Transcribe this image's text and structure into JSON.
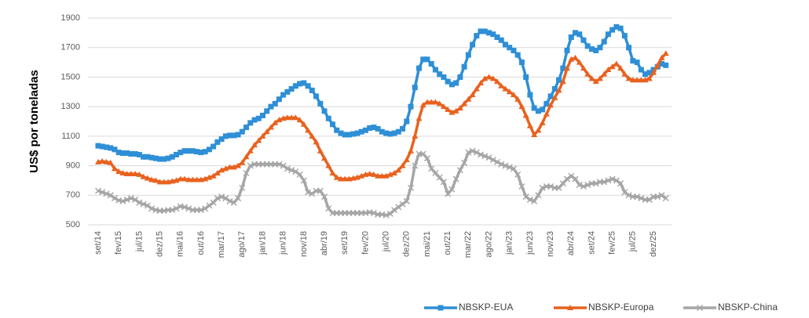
{
  "chart_data": {
    "type": "line",
    "y_label": "US$ por toneladas",
    "ylim": [
      500,
      1900
    ],
    "yticks": [
      500,
      700,
      900,
      1100,
      1300,
      1500,
      1700,
      1900
    ],
    "grid": true,
    "legend": "bottom",
    "categories": [
      "set/14",
      null,
      null,
      null,
      null,
      "fev/15",
      null,
      null,
      null,
      null,
      "jul/15",
      null,
      null,
      null,
      null,
      "dez/15",
      null,
      null,
      null,
      null,
      "mai/16",
      null,
      null,
      null,
      null,
      "out/16",
      null,
      null,
      null,
      null,
      "mar/17",
      null,
      null,
      null,
      null,
      "ago/17",
      null,
      null,
      null,
      null,
      "jan/18",
      null,
      null,
      null,
      null,
      "jun/18",
      null,
      null,
      null,
      null,
      "nov/18",
      null,
      null,
      null,
      null,
      "abr/19",
      null,
      null,
      null,
      null,
      "set/19",
      null,
      null,
      null,
      null,
      "fev/20",
      null,
      null,
      null,
      null,
      "jul/20",
      null,
      null,
      null,
      null,
      "dez/20",
      null,
      null,
      null,
      null,
      "mai/21",
      null,
      null,
      null,
      null,
      "out/21",
      null,
      null,
      null,
      null,
      "mar/22",
      null,
      null,
      null,
      null,
      "ago/22",
      null,
      null,
      null,
      null,
      "jan/23",
      null,
      null,
      null,
      null,
      "jun/23",
      null,
      null,
      null,
      null,
      "nov/23",
      null,
      null,
      null,
      null,
      "abr/24",
      null,
      null,
      null,
      null,
      "set/24",
      null,
      null,
      null,
      null,
      "fev/25",
      null,
      null,
      null,
      null,
      "jul/25",
      null,
      null,
      null,
      null,
      "dez/25",
      null,
      null,
      null
    ],
    "series": [
      {
        "name": "NBSKP-EUA",
        "color": "#2e8fd6",
        "marker": "square",
        "values": [
          1035,
          1030,
          1025,
          1020,
          1010,
          990,
          985,
          985,
          980,
          980,
          975,
          960,
          960,
          955,
          950,
          945,
          945,
          950,
          960,
          975,
          990,
          1000,
          1000,
          1000,
          995,
          990,
          995,
          1010,
          1030,
          1060,
          1080,
          1100,
          1105,
          1105,
          1110,
          1130,
          1160,
          1190,
          1210,
          1220,
          1240,
          1270,
          1300,
          1320,
          1350,
          1380,
          1400,
          1420,
          1440,
          1455,
          1460,
          1440,
          1410,
          1370,
          1320,
          1270,
          1220,
          1180,
          1140,
          1120,
          1110,
          1110,
          1115,
          1120,
          1130,
          1140,
          1155,
          1160,
          1150,
          1130,
          1120,
          1115,
          1120,
          1130,
          1150,
          1200,
          1300,
          1430,
          1560,
          1620,
          1620,
          1590,
          1550,
          1520,
          1500,
          1470,
          1450,
          1460,
          1500,
          1570,
          1650,
          1720,
          1780,
          1810,
          1810,
          1800,
          1790,
          1770,
          1750,
          1720,
          1700,
          1680,
          1650,
          1600,
          1500,
          1380,
          1290,
          1270,
          1280,
          1320,
          1370,
          1420,
          1480,
          1560,
          1680,
          1770,
          1800,
          1790,
          1750,
          1710,
          1690,
          1680,
          1700,
          1740,
          1790,
          1820,
          1840,
          1830,
          1780,
          1700,
          1610,
          1600,
          1550,
          1520,
          1530,
          1550,
          1570,
          1590,
          1580
        ]
      },
      {
        "name": "NBSKP-Europa",
        "color": "#e8621f",
        "marker": "triangle",
        "values": [
          925,
          930,
          925,
          920,
          880,
          860,
          850,
          845,
          845,
          845,
          840,
          825,
          815,
          805,
          800,
          790,
          790,
          790,
          795,
          800,
          810,
          810,
          805,
          805,
          805,
          805,
          810,
          820,
          830,
          850,
          870,
          880,
          890,
          890,
          900,
          920,
          960,
          1000,
          1040,
          1070,
          1100,
          1130,
          1160,
          1190,
          1210,
          1220,
          1225,
          1225,
          1225,
          1210,
          1180,
          1140,
          1100,
          1060,
          1000,
          950,
          900,
          850,
          820,
          810,
          810,
          810,
          815,
          820,
          830,
          840,
          845,
          840,
          830,
          830,
          830,
          840,
          850,
          870,
          900,
          940,
          1000,
          1100,
          1220,
          1310,
          1330,
          1330,
          1330,
          1320,
          1300,
          1280,
          1260,
          1270,
          1290,
          1320,
          1350,
          1380,
          1420,
          1460,
          1490,
          1500,
          1490,
          1470,
          1440,
          1420,
          1400,
          1380,
          1350,
          1300,
          1240,
          1170,
          1110,
          1140,
          1190,
          1250,
          1310,
          1360,
          1410,
          1470,
          1560,
          1620,
          1630,
          1600,
          1560,
          1520,
          1490,
          1470,
          1490,
          1520,
          1550,
          1570,
          1590,
          1560,
          1520,
          1490,
          1480,
          1480,
          1480,
          1480,
          1490,
          1530,
          1580,
          1630,
          1660
        ]
      },
      {
        "name": "NBSKP-China",
        "color": "#a6a6a6",
        "marker": "x",
        "values": [
          730,
          720,
          710,
          700,
          680,
          665,
          660,
          670,
          680,
          670,
          650,
          640,
          630,
          610,
          600,
          595,
          595,
          600,
          600,
          610,
          625,
          620,
          610,
          600,
          600,
          600,
          610,
          630,
          650,
          680,
          690,
          680,
          660,
          650,
          680,
          750,
          850,
          900,
          910,
          910,
          910,
          910,
          910,
          910,
          910,
          900,
          880,
          870,
          860,
          840,
          800,
          720,
          710,
          730,
          730,
          690,
          610,
          580,
          580,
          580,
          580,
          580,
          580,
          580,
          580,
          580,
          585,
          580,
          570,
          570,
          565,
          575,
          600,
          620,
          640,
          660,
          750,
          900,
          980,
          980,
          950,
          880,
          850,
          820,
          790,
          710,
          740,
          810,
          870,
          920,
          990,
          1000,
          990,
          975,
          965,
          955,
          940,
          925,
          910,
          900,
          890,
          880,
          840,
          760,
          690,
          670,
          660,
          700,
          750,
          760,
          760,
          750,
          750,
          780,
          810,
          830,
          810,
          770,
          760,
          770,
          780,
          780,
          790,
          790,
          800,
          810,
          800,
          780,
          720,
          700,
          690,
          690,
          680,
          670,
          670,
          690,
          690,
          700,
          680
        ]
      }
    ]
  }
}
